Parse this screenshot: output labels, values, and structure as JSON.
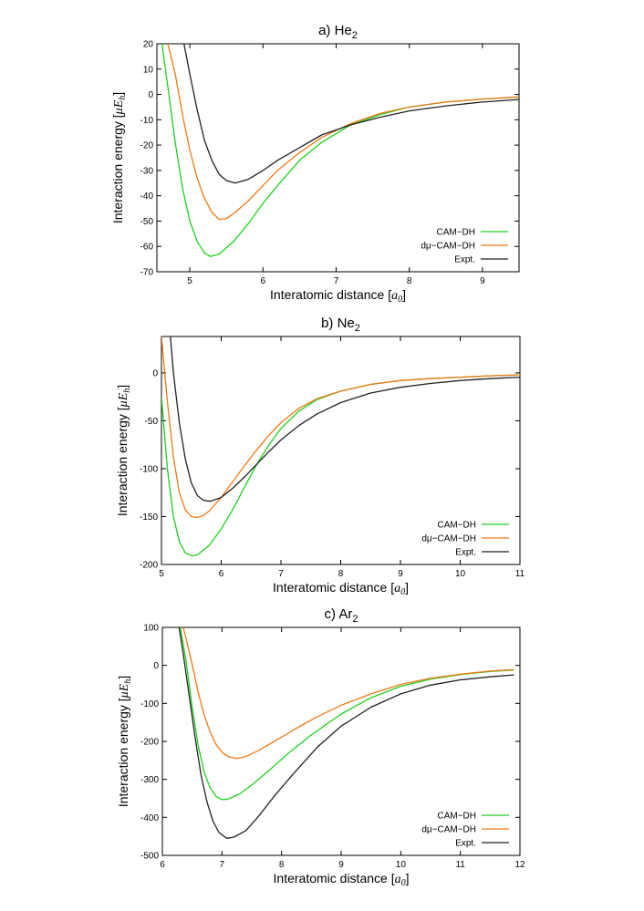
{
  "chart_data": [
    {
      "type": "line",
      "title_prefix": "a) He",
      "title_sub": "2",
      "xlabel": "Interatomic distance [",
      "xlabel_unit": "a",
      "xlabel_unit_sub": "0",
      "xlabel_close": "]",
      "ylabel": "Interaction energy [",
      "ylabel_unit": "μE",
      "ylabel_unit_sub": "h",
      "ylabel_close": "]",
      "xlim": [
        4.55,
        9.5
      ],
      "ylim": [
        -70,
        20
      ],
      "xticks": [
        5,
        6,
        7,
        8,
        9
      ],
      "yticks": [
        -70,
        -60,
        -50,
        -40,
        -30,
        -20,
        -10,
        0,
        10,
        20
      ],
      "legend_position": "bottom-right",
      "series": [
        {
          "name": "CAM−DH",
          "color": "#1ecf1e",
          "x": [
            4.62,
            4.7,
            4.8,
            4.9,
            5.0,
            5.1,
            5.2,
            5.28,
            5.4,
            5.6,
            5.8,
            6.0,
            6.2,
            6.5,
            6.8,
            7.2,
            7.6,
            8.0,
            8.5,
            9.0,
            9.5
          ],
          "y": [
            20,
            3,
            -19,
            -37,
            -50,
            -58,
            -62.5,
            -64,
            -63,
            -58,
            -51,
            -43,
            -36,
            -26,
            -19,
            -12,
            -8,
            -5,
            -3,
            -1.8,
            -1
          ]
        },
        {
          "name": "dμ−CAM−DH",
          "color": "#f07814",
          "x": [
            4.7,
            4.8,
            4.9,
            5.0,
            5.1,
            5.2,
            5.3,
            5.4,
            5.5,
            5.6,
            5.8,
            6.0,
            6.2,
            6.5,
            6.8,
            7.2,
            7.6,
            8.0,
            8.5,
            9.0,
            9.5
          ],
          "y": [
            20,
            8,
            -8,
            -22,
            -33,
            -41,
            -46.5,
            -49.3,
            -49,
            -47,
            -42,
            -36,
            -30,
            -23,
            -17,
            -11.5,
            -7.5,
            -5,
            -3,
            -1.8,
            -1
          ]
        },
        {
          "name": "Expt.",
          "color": "#222222",
          "x": [
            4.92,
            5.0,
            5.1,
            5.2,
            5.3,
            5.4,
            5.5,
            5.62,
            5.8,
            6.0,
            6.2,
            6.5,
            6.8,
            7.2,
            7.6,
            8.0,
            8.5,
            9.0,
            9.5
          ],
          "y": [
            20,
            8,
            -6,
            -18,
            -26,
            -31.5,
            -34,
            -35,
            -33.5,
            -30,
            -26,
            -21,
            -16,
            -12,
            -9,
            -6.5,
            -4.5,
            -3,
            -2
          ]
        }
      ]
    },
    {
      "type": "line",
      "title_prefix": "b) Ne",
      "title_sub": "2",
      "xlabel": "Interatomic distance [",
      "xlabel_unit": "a",
      "xlabel_unit_sub": "0",
      "xlabel_close": "]",
      "ylabel": "Interaction energy [",
      "ylabel_unit": "μE",
      "ylabel_unit_sub": "h",
      "ylabel_close": "]",
      "xlim": [
        5,
        11
      ],
      "ylim": [
        -200,
        38
      ],
      "xticks": [
        5,
        6,
        7,
        8,
        9,
        10,
        11
      ],
      "yticks": [
        -200,
        -150,
        -100,
        -50,
        0
      ],
      "legend_position": "bottom-right",
      "series": [
        {
          "name": "CAM−DH",
          "color": "#1ecf1e",
          "x": [
            5.0,
            5.1,
            5.2,
            5.3,
            5.4,
            5.52,
            5.6,
            5.8,
            6.0,
            6.2,
            6.4,
            6.6,
            6.8,
            7.0,
            7.3,
            7.6,
            8.0,
            8.5,
            9.0,
            9.5,
            10.0,
            10.5,
            11.0
          ],
          "y": [
            -25,
            -100,
            -150,
            -176,
            -188,
            -191,
            -190,
            -180,
            -163,
            -142,
            -118,
            -95,
            -75,
            -58,
            -40,
            -28,
            -19,
            -12,
            -8,
            -6,
            -4.5,
            -3,
            -2
          ]
        },
        {
          "name": "dμ−CAM−DH",
          "color": "#f07814",
          "x": [
            5.0,
            5.1,
            5.2,
            5.3,
            5.4,
            5.5,
            5.6,
            5.7,
            5.8,
            6.0,
            6.2,
            6.4,
            6.6,
            6.8,
            7.0,
            7.3,
            7.6,
            8.0,
            8.5,
            9.0,
            9.5,
            10.0,
            10.5,
            11.0
          ],
          "y": [
            38,
            -30,
            -88,
            -125,
            -143,
            -150,
            -151,
            -149,
            -144,
            -130,
            -113,
            -96,
            -80,
            -65,
            -52,
            -37,
            -27,
            -19,
            -12,
            -8,
            -6,
            -4.5,
            -3,
            -2
          ]
        },
        {
          "name": "Expt.",
          "color": "#222222",
          "x": [
            5.15,
            5.2,
            5.3,
            5.4,
            5.5,
            5.6,
            5.7,
            5.82,
            6.0,
            6.2,
            6.4,
            6.6,
            6.8,
            7.0,
            7.3,
            7.6,
            8.0,
            8.5,
            9.0,
            9.5,
            10.0,
            10.5,
            11.0
          ],
          "y": [
            38,
            0,
            -52,
            -90,
            -115,
            -128,
            -133,
            -134,
            -130,
            -120,
            -108,
            -95,
            -82,
            -70,
            -55,
            -43,
            -31,
            -21,
            -15,
            -11,
            -8,
            -6,
            -4.5
          ]
        }
      ]
    },
    {
      "type": "line",
      "title_prefix": "c) Ar",
      "title_sub": "2",
      "xlabel": "Interatomic distance [",
      "xlabel_unit": "a",
      "xlabel_unit_sub": "0",
      "xlabel_close": "]",
      "ylabel": "Interaction energy [",
      "ylabel_unit": "μE",
      "ylabel_unit_sub": "h",
      "ylabel_close": "]",
      "xlim": [
        6,
        12
      ],
      "ylim": [
        -500,
        100
      ],
      "xticks": [
        6,
        7,
        8,
        9,
        10,
        11,
        12
      ],
      "yticks": [
        -500,
        -400,
        -300,
        -200,
        -100,
        0,
        100
      ],
      "legend_position": "bottom-right",
      "series": [
        {
          "name": "CAM−DH",
          "color": "#1ecf1e",
          "x": [
            6.3,
            6.4,
            6.5,
            6.6,
            6.7,
            6.8,
            6.9,
            7.0,
            7.1,
            7.3,
            7.5,
            7.8,
            8.1,
            8.5,
            9.0,
            9.5,
            10.0,
            10.5,
            11.0,
            11.5,
            11.9
          ],
          "y": [
            100,
            10,
            -110,
            -210,
            -280,
            -322,
            -345,
            -353,
            -352,
            -338,
            -315,
            -275,
            -233,
            -183,
            -128,
            -85,
            -55,
            -36,
            -24,
            -16,
            -12
          ]
        },
        {
          "name": "dμ−CAM−DH",
          "color": "#f07814",
          "x": [
            6.35,
            6.4,
            6.5,
            6.6,
            6.7,
            6.8,
            6.9,
            7.0,
            7.1,
            7.25,
            7.4,
            7.6,
            7.9,
            8.2,
            8.6,
            9.0,
            9.5,
            10.0,
            10.5,
            11.0,
            11.5,
            11.9
          ],
          "y": [
            100,
            70,
            2,
            -70,
            -130,
            -175,
            -208,
            -228,
            -240,
            -245,
            -240,
            -225,
            -198,
            -170,
            -135,
            -105,
            -75,
            -50,
            -34,
            -23,
            -15,
            -11
          ]
        },
        {
          "name": "Expt.",
          "color": "#222222",
          "x": [
            6.28,
            6.35,
            6.45,
            6.55,
            6.65,
            6.75,
            6.85,
            6.95,
            7.08,
            7.2,
            7.4,
            7.6,
            7.9,
            8.2,
            8.6,
            9.0,
            9.5,
            10.0,
            10.5,
            11.0,
            11.5,
            11.9
          ],
          "y": [
            100,
            30,
            -80,
            -190,
            -290,
            -360,
            -410,
            -440,
            -455,
            -452,
            -435,
            -400,
            -340,
            -285,
            -215,
            -160,
            -110,
            -75,
            -52,
            -38,
            -30,
            -25
          ]
        }
      ]
    }
  ]
}
